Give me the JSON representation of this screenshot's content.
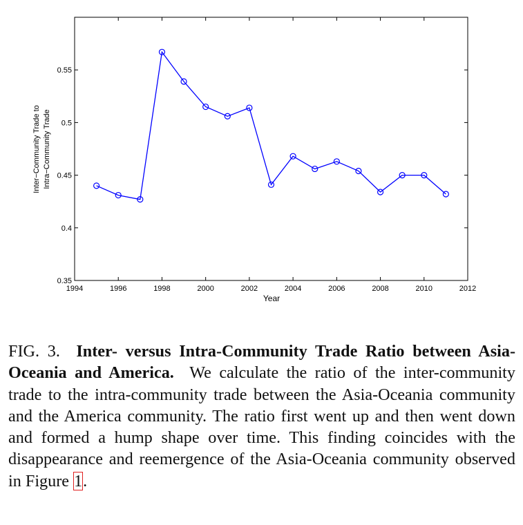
{
  "chart_data": {
    "type": "line",
    "x": [
      1995,
      1996,
      1997,
      1998,
      1999,
      2000,
      2001,
      2002,
      2003,
      2004,
      2005,
      2006,
      2007,
      2008,
      2009,
      2010,
      2011
    ],
    "series": [
      {
        "values": [
          0.44,
          0.431,
          0.427,
          0.567,
          0.539,
          0.515,
          0.506,
          0.514,
          0.441,
          0.468,
          0.456,
          0.463,
          0.454,
          0.434,
          0.45,
          0.45,
          0.432
        ],
        "color": "#0000ff",
        "marker": "circle"
      }
    ],
    "xlabel": "Year",
    "ylabel_line1": "Inter−Community Trade to",
    "ylabel_line2": "Intra−Community Trade",
    "xlim": [
      1994,
      2012
    ],
    "ylim": [
      0.35,
      0.6
    ],
    "xticks": [
      "1994",
      "1996",
      "1998",
      "2000",
      "2002",
      "2004",
      "2006",
      "2008",
      "2010",
      "2012"
    ],
    "yticks": [
      "0.35",
      "0.4",
      "0.45",
      "0.5",
      "0.55"
    ],
    "ytick_values": [
      0.35,
      0.4,
      0.45,
      0.5,
      0.55
    ],
    "xtick_values": [
      1994,
      1996,
      1998,
      2000,
      2002,
      2004,
      2006,
      2008,
      2010,
      2012
    ],
    "grid": false
  },
  "caption": {
    "label": "FIG. 3.",
    "title": "Inter- versus Intra-Community Trade Ratio between Asia-Oceania and America.",
    "body": "We calculate the ratio of the inter-community trade to the intra-community trade between the Asia-Oceania community and the America community.  The ratio first went up and then went down and formed a hump shape over time.  This finding coincides with the disappearance and reemergence of the Asia-Oceania community observed in Figure",
    "figure_ref": "1",
    "end": "."
  }
}
